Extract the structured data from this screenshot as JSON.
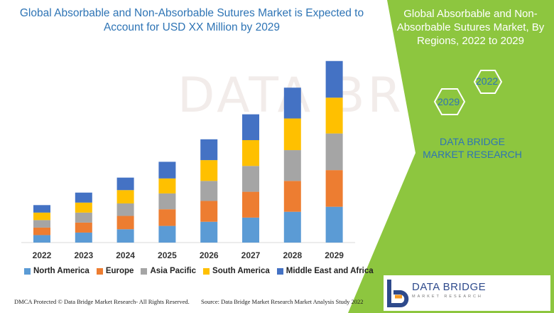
{
  "title": "Global Absorbable and Non-Absorbable Sutures Market is Expected to Account for USD XX Million by 2029",
  "panel": {
    "title": "Global Absorbable and Non-Absorbable Sutures Market, By Regions, 2022 to 2029",
    "hex_top_label": "2022",
    "hex_bottom_label": "2029",
    "brand_text": "DATA BRIDGE MARKET RESEARCH",
    "accent_color": "#8dc63f"
  },
  "footer": {
    "left": "DMCA Protected © Data Bridge Market Research- All Rights Reserved.",
    "right": "Source: Data Bridge Market Research Market Analysis Study 2022"
  },
  "logo": {
    "name": "DATA BRIDGE",
    "sub": "MARKET RESEARCH"
  },
  "watermark": "DATA BRIDGE",
  "chart_data": {
    "type": "bar",
    "stacked": true,
    "categories": [
      "2022",
      "2023",
      "2024",
      "2025",
      "2026",
      "2027",
      "2028",
      "2029"
    ],
    "series": [
      {
        "name": "North America",
        "color": "#5b9bd5",
        "values": [
          9,
          12,
          16,
          20,
          25,
          30,
          37,
          43
        ]
      },
      {
        "name": "Europe",
        "color": "#ed7d31",
        "values": [
          9,
          12,
          16,
          20,
          25,
          31,
          37,
          44
        ]
      },
      {
        "name": "Asia Pacific",
        "color": "#a5a5a5",
        "values": [
          9,
          12,
          15,
          19,
          24,
          31,
          37,
          44
        ]
      },
      {
        "name": "South America",
        "color": "#ffc000",
        "values": [
          9,
          12,
          16,
          18,
          25,
          31,
          38,
          43
        ]
      },
      {
        "name": "Middle East and Africa",
        "color": "#4472c4",
        "values": [
          9,
          12,
          15,
          20,
          25,
          31,
          37,
          44
        ]
      }
    ],
    "ylim": [
      0,
      240
    ],
    "legend_position": "bottom",
    "grid": false
  }
}
